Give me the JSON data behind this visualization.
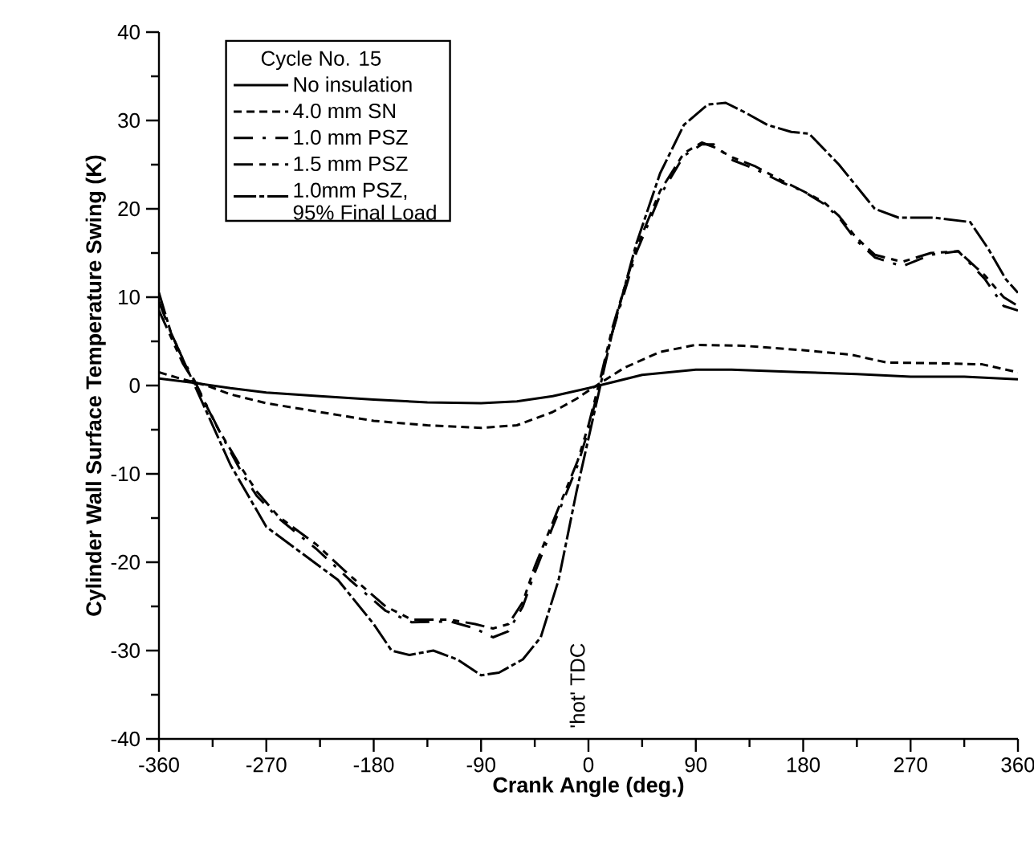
{
  "chart_data": {
    "type": "line",
    "xlabel": "Crank Angle (deg.)",
    "ylabel": "Cylinder Wall Surface Temperature Swing (K)",
    "legend_title": "Cycle No. 15",
    "legend": "top left",
    "grid": false,
    "marker": "none",
    "xlim": [
      -360,
      360
    ],
    "xticks": [
      -360,
      -270,
      -180,
      -90,
      0,
      90,
      180,
      270,
      360
    ],
    "ylim": [
      -40,
      40
    ],
    "yticks": [
      -40,
      -30,
      -20,
      -10,
      0,
      10,
      20,
      30,
      40
    ],
    "annotations": [
      "'hot' TDC"
    ],
    "series": [
      {
        "name": "No insulation",
        "color": "#000000",
        "line_style": "solid",
        "x": [
          -360,
          -330,
          -300,
          -270,
          -225,
          -180,
          -135,
          -90,
          -60,
          -30,
          0,
          15,
          45,
          90,
          120,
          180,
          225,
          270,
          315,
          360
        ],
        "values": [
          0.8,
          0.3,
          -0.3,
          -0.8,
          -1.2,
          -1.6,
          -1.9,
          -2.0,
          -1.8,
          -1.2,
          -0.3,
          0.2,
          1.2,
          1.8,
          1.8,
          1.5,
          1.3,
          1.0,
          1.0,
          0.7
        ]
      },
      {
        "name": "4.0 mm SN",
        "color": "#000000",
        "line_style": "dashed",
        "x": [
          -360,
          -340,
          -320,
          -300,
          -270,
          -225,
          -180,
          -135,
          -90,
          -60,
          -30,
          -10,
          10,
          30,
          60,
          90,
          130,
          180,
          220,
          250,
          300,
          330,
          350,
          360
        ],
        "values": [
          1.5,
          0.7,
          0,
          -1,
          -2,
          -3,
          -4,
          -4.5,
          -4.8,
          -4.5,
          -3,
          -1.5,
          0.3,
          2,
          3.8,
          4.6,
          4.5,
          4,
          3.5,
          2.6,
          2.5,
          2.4,
          1.8,
          1.5
        ]
      },
      {
        "name": "1.0 mm PSZ",
        "color": "#000000",
        "line_style": "dashdot",
        "x": [
          -360,
          -350,
          -340,
          -330,
          -310,
          -290,
          -278,
          -260,
          -228,
          -200,
          -170,
          -148,
          -116,
          -95,
          -80,
          -67,
          -55,
          -45,
          -30,
          -9,
          0,
          10,
          20,
          40,
          60,
          80,
          95,
          105,
          121,
          140,
          162,
          180,
          197,
          210,
          224,
          240,
          263,
          287,
          310,
          332,
          348,
          360
        ],
        "values": [
          9.5,
          6,
          3,
          0.5,
          -5,
          -10,
          -12.5,
          -15,
          -18.5,
          -22,
          -25.5,
          -26.8,
          -26.7,
          -27.5,
          -28.5,
          -27.8,
          -25,
          -21.2,
          -16,
          -9,
          -5,
          0.5,
          6,
          15,
          21.5,
          26,
          27.3,
          27.3,
          25.5,
          24.5,
          23,
          22,
          20.6,
          19,
          16.5,
          14.5,
          13.5,
          14.8,
          15.2,
          12.1,
          9,
          8.5
        ]
      },
      {
        "name": "1.5 mm PSZ",
        "color": "#000000",
        "line_style": "dashdotdot",
        "x": [
          -360,
          -350,
          -340,
          -330,
          -310,
          -290,
          -278,
          -260,
          -228,
          -200,
          -170,
          -148,
          -116,
          -95,
          -80,
          -67,
          -55,
          -45,
          -30,
          -9,
          0,
          10,
          20,
          40,
          60,
          80,
          95,
          105,
          121,
          140,
          162,
          180,
          197,
          210,
          224,
          240,
          263,
          287,
          310,
          332,
          348,
          360
        ],
        "values": [
          8.5,
          5.5,
          2.5,
          0.3,
          -5,
          -9.5,
          -12,
          -14.8,
          -18,
          -21.5,
          -25,
          -26.5,
          -26.5,
          -27,
          -27.5,
          -27,
          -24.5,
          -20.5,
          -15.5,
          -8.5,
          -4.5,
          0.8,
          6.5,
          15.5,
          22,
          26.3,
          27.5,
          27,
          25.8,
          24.8,
          23.2,
          22,
          20.8,
          19.2,
          16.8,
          14.8,
          14,
          15,
          15.2,
          12.5,
          10,
          9
        ]
      },
      {
        "name": "1.0mm PSZ, 95% Final Load",
        "color": "#000000",
        "line_style": "longdashdot",
        "x": [
          -360,
          -350,
          -340,
          -330,
          -300,
          -270,
          -240,
          -210,
          -180,
          -165,
          -150,
          -130,
          -110,
          -90,
          -75,
          -55,
          -40,
          -25,
          -10,
          0,
          10,
          20,
          40,
          60,
          80,
          100,
          115,
          130,
          150,
          170,
          185,
          210,
          240,
          260,
          290,
          320,
          335,
          350,
          360
        ],
        "values": [
          10.5,
          6,
          3,
          0,
          -9,
          -16,
          -19,
          -22,
          -27,
          -30,
          -30.5,
          -30,
          -31,
          -32.8,
          -32.5,
          -31,
          -28.5,
          -22,
          -12,
          -6,
          0,
          6,
          16,
          24,
          29.5,
          31.8,
          32,
          31,
          29.5,
          28.7,
          28.5,
          25,
          20,
          19,
          19,
          18.5,
          15.5,
          12,
          10.5
        ]
      }
    ]
  }
}
